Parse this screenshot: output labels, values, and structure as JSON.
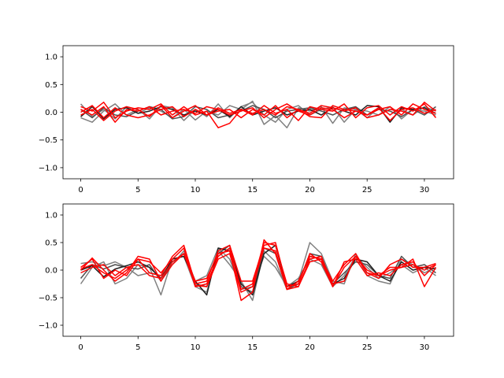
{
  "chart_data": [
    {
      "type": "line",
      "ylim": [
        -1.2,
        1.2
      ],
      "xlim": [
        -1.55,
        32.55
      ],
      "xticks": [
        0,
        5,
        10,
        15,
        20,
        25,
        30
      ],
      "yticks": [
        -1.0,
        -0.5,
        0.0,
        0.5,
        1.0
      ],
      "xtick_labels": [
        "0",
        "5",
        "10",
        "15",
        "20",
        "25",
        "30"
      ],
      "ytick_labels": [
        "−1.0",
        "−0.5",
        "0.0",
        "0.5",
        "1.0"
      ],
      "x": [
        0,
        1,
        2,
        3,
        4,
        5,
        6,
        7,
        8,
        9,
        10,
        11,
        12,
        13,
        14,
        15,
        16,
        17,
        18,
        19,
        20,
        21,
        22,
        23,
        24,
        25,
        26,
        27,
        28,
        29,
        30,
        31
      ],
      "series": [
        {
          "color": "#808080",
          "values": [
            0.15,
            -0.08,
            0.05,
            -0.12,
            0.1,
            -0.02,
            0.08,
            0.02,
            -0.1,
            0.05,
            -0.14,
            0.02,
            -0.05,
            0.12,
            0.05,
            0.2,
            -0.22,
            -0.06,
            -0.28,
            0.08,
            0.02,
            0.1,
            -0.2,
            0.08,
            0.05,
            -0.1,
            0.08,
            -0.15,
            0.05,
            -0.05,
            0.1,
            0.02
          ]
        },
        {
          "color": "#808080",
          "values": [
            -0.1,
            -0.18,
            0.02,
            0.15,
            -0.05,
            0.05,
            -0.12,
            0.12,
            0.08,
            -0.15,
            0.05,
            -0.08,
            0.15,
            -0.1,
            0.1,
            0.18,
            -0.05,
            -0.18,
            0.05,
            0.12,
            -0.05,
            0.05,
            0.1,
            -0.18,
            0.05,
            0.02,
            -0.05,
            0.1,
            -0.12,
            0.05,
            0.02,
            -0.05
          ]
        },
        {
          "color": "#505050",
          "values": [
            0.05,
            -0.1,
            0.08,
            -0.05,
            -0.08,
            0.02,
            0.1,
            0.05,
            -0.12,
            -0.08,
            0.1,
            0.05,
            -0.1,
            -0.05,
            0.02,
            0.12,
            0.05,
            -0.1,
            0.02,
            0.05,
            0.08,
            0.02,
            -0.05,
            0.05,
            0.1,
            -0.05,
            0.05,
            0.02,
            -0.08,
            0.05,
            -0.05,
            0.1
          ]
        },
        {
          "color": "#202020",
          "values": [
            -0.08,
            0.1,
            -0.12,
            0.05,
            0.08,
            -0.02,
            0.02,
            0.1,
            0.05,
            -0.05,
            0.02,
            -0.05,
            0.05,
            -0.08,
            0.1,
            -0.05,
            0.02,
            0.08,
            -0.05,
            0.02,
            0.05,
            -0.05,
            0.08,
            0.02,
            -0.05,
            0.12,
            0.1,
            -0.18,
            0.08,
            0.05,
            0.08,
            -0.02
          ]
        },
        {
          "color": "#ff0000",
          "values": [
            0.1,
            0.02,
            0.18,
            -0.1,
            0.02,
            0.08,
            0.05,
            0.15,
            -0.05,
            0.1,
            -0.05,
            0.02,
            -0.28,
            -0.2,
            0.05,
            -0.05,
            0.12,
            -0.02,
            0.05,
            -0.15,
            0.1,
            0.05,
            0.02,
            0.15,
            -0.1,
            0.08,
            0.12,
            -0.05,
            0.1,
            0.02,
            0.15,
            -0.1
          ]
        },
        {
          "color": "#ff0000",
          "values": [
            0.0,
            0.12,
            -0.1,
            0.08,
            -0.05,
            -0.1,
            -0.05,
            0.05,
            0.1,
            -0.08,
            0.05,
            -0.05,
            0.02,
            0.05,
            -0.1,
            0.05,
            -0.05,
            0.12,
            -0.1,
            0.05,
            -0.08,
            -0.1,
            0.12,
            0.05,
            0.02,
            -0.05,
            0.08,
            -0.15,
            0.05,
            0.08,
            -0.02,
            0.05
          ]
        },
        {
          "color": "#ff0000",
          "values": [
            0.05,
            -0.05,
            0.1,
            -0.18,
            0.05,
            0.02,
            0.1,
            -0.05,
            0.02,
            0.05,
            -0.02,
            0.1,
            0.05,
            -0.05,
            0.02,
            0.08,
            -0.1,
            0.05,
            0.15,
            0.02,
            -0.05,
            0.08,
            0.05,
            -0.1,
            0.02,
            -0.05,
            0.05,
            0.1,
            -0.05,
            0.15,
            0.05,
            -0.02
          ]
        },
        {
          "color": "#ff0000",
          "values": [
            -0.05,
            0.05,
            -0.15,
            0.02,
            0.1,
            0.05,
            -0.08,
            0.12,
            -0.1,
            0.02,
            0.12,
            -0.05,
            0.08,
            -0.02,
            0.05,
            -0.02,
            0.05,
            -0.05,
            0.1,
            0.05,
            -0.02,
            0.12,
            0.08,
            0.02,
            0.08,
            -0.1,
            -0.05,
            0.05,
            0.02,
            -0.05,
            0.18,
            0.02
          ]
        }
      ]
    },
    {
      "type": "line",
      "ylim": [
        -1.2,
        1.2
      ],
      "xlim": [
        -1.55,
        32.55
      ],
      "xticks": [
        0,
        5,
        10,
        15,
        20,
        25,
        30
      ],
      "yticks": [
        -1.0,
        -0.5,
        0.0,
        0.5,
        1.0
      ],
      "xtick_labels": [
        "0",
        "5",
        "10",
        "15",
        "20",
        "25",
        "30"
      ],
      "ytick_labels": [
        "−1.0",
        "−0.5",
        "0.0",
        "0.5",
        "1.0"
      ],
      "x": [
        0,
        1,
        2,
        3,
        4,
        5,
        6,
        7,
        8,
        9,
        10,
        11,
        12,
        13,
        14,
        15,
        16,
        17,
        18,
        19,
        20,
        21,
        22,
        23,
        24,
        25,
        26,
        27,
        28,
        29,
        30,
        31
      ],
      "series": [
        {
          "color": "#808080",
          "values": [
            -0.25,
            0.05,
            0.15,
            -0.25,
            -0.15,
            0.1,
            0.05,
            -0.45,
            0.2,
            0.25,
            -0.3,
            -0.4,
            0.35,
            0.1,
            -0.2,
            -0.55,
            0.35,
            0.15,
            -0.35,
            -0.2,
            0.5,
            0.3,
            -0.2,
            -0.25,
            0.3,
            -0.1,
            -0.2,
            -0.25,
            0.2,
            0.1,
            -0.05,
            0.05
          ]
        },
        {
          "color": "#808080",
          "values": [
            0.12,
            0.15,
            0.08,
            0.15,
            0.05,
            -0.1,
            -0.05,
            -0.1,
            0.1,
            0.35,
            -0.2,
            -0.1,
            0.4,
            0.2,
            -0.35,
            -0.3,
            0.25,
            0.05,
            -0.3,
            -0.15,
            0.2,
            0.1,
            -0.3,
            -0.1,
            0.25,
            0.05,
            -0.15,
            -0.05,
            0.1,
            -0.05,
            0.05,
            -0.1
          ]
        },
        {
          "color": "#505050",
          "values": [
            -0.15,
            0.1,
            0.02,
            0.1,
            0.05,
            0.02,
            0.1,
            -0.2,
            0.15,
            0.3,
            -0.25,
            -0.3,
            0.3,
            0.45,
            -0.3,
            -0.4,
            0.4,
            0.3,
            -0.35,
            -0.25,
            0.3,
            0.25,
            -0.25,
            -0.05,
            0.15,
            0.1,
            -0.1,
            -0.15,
            0.25,
            0.05,
            0.1,
            -0.05
          ]
        },
        {
          "color": "#202020",
          "values": [
            0.0,
            0.08,
            -0.12,
            0.02,
            0.08,
            0.15,
            0.05,
            -0.15,
            0.2,
            0.25,
            -0.2,
            -0.45,
            0.4,
            0.35,
            -0.25,
            -0.45,
            0.3,
            0.45,
            -0.3,
            -0.2,
            0.25,
            0.2,
            -0.25,
            -0.15,
            0.2,
            0.15,
            -0.1,
            -0.2,
            0.15,
            0.0,
            0.05,
            0.02
          ]
        },
        {
          "color": "#ff0000",
          "values": [
            0.05,
            0.2,
            -0.15,
            0.0,
            -0.1,
            0.2,
            0.15,
            -0.05,
            0.2,
            0.4,
            -0.3,
            -0.25,
            0.25,
            0.4,
            -0.35,
            -0.25,
            0.5,
            0.45,
            -0.25,
            -0.3,
            0.2,
            0.25,
            -0.3,
            0.15,
            0.2,
            -0.1,
            -0.05,
            -0.1,
            0.1,
            0.15,
            -0.1,
            0.1
          ]
        },
        {
          "color": "#ff0000",
          "values": [
            -0.05,
            0.05,
            0.1,
            -0.1,
            0.05,
            0.1,
            -0.1,
            -0.15,
            0.15,
            0.3,
            -0.2,
            -0.15,
            0.3,
            0.35,
            -0.55,
            -0.4,
            0.55,
            0.3,
            -0.35,
            -0.3,
            0.15,
            0.2,
            -0.25,
            -0.2,
            0.25,
            0.0,
            -0.1,
            0.05,
            0.05,
            0.2,
            -0.3,
            0.05
          ]
        },
        {
          "color": "#ff0000",
          "values": [
            0.02,
            0.1,
            -0.05,
            -0.15,
            0.0,
            0.2,
            -0.05,
            -0.1,
            0.25,
            0.45,
            -0.25,
            -0.2,
            0.35,
            0.45,
            -0.2,
            -0.2,
            0.45,
            0.5,
            -0.3,
            -0.25,
            0.3,
            0.15,
            -0.3,
            0.05,
            0.25,
            -0.05,
            -0.15,
            0.1,
            0.2,
            0.05,
            0.05,
            0.12
          ]
        },
        {
          "color": "#ff0000",
          "values": [
            0.0,
            0.22,
            0.0,
            -0.2,
            -0.05,
            0.25,
            0.2,
            -0.2,
            0.1,
            0.3,
            -0.28,
            -0.3,
            0.2,
            0.3,
            -0.4,
            -0.3,
            0.4,
            0.35,
            -0.35,
            -0.2,
            0.25,
            0.2,
            -0.2,
            0.1,
            0.3,
            -0.05,
            -0.1,
            0.0,
            0.05,
            0.1,
            0.0,
            0.1
          ]
        }
      ]
    }
  ]
}
